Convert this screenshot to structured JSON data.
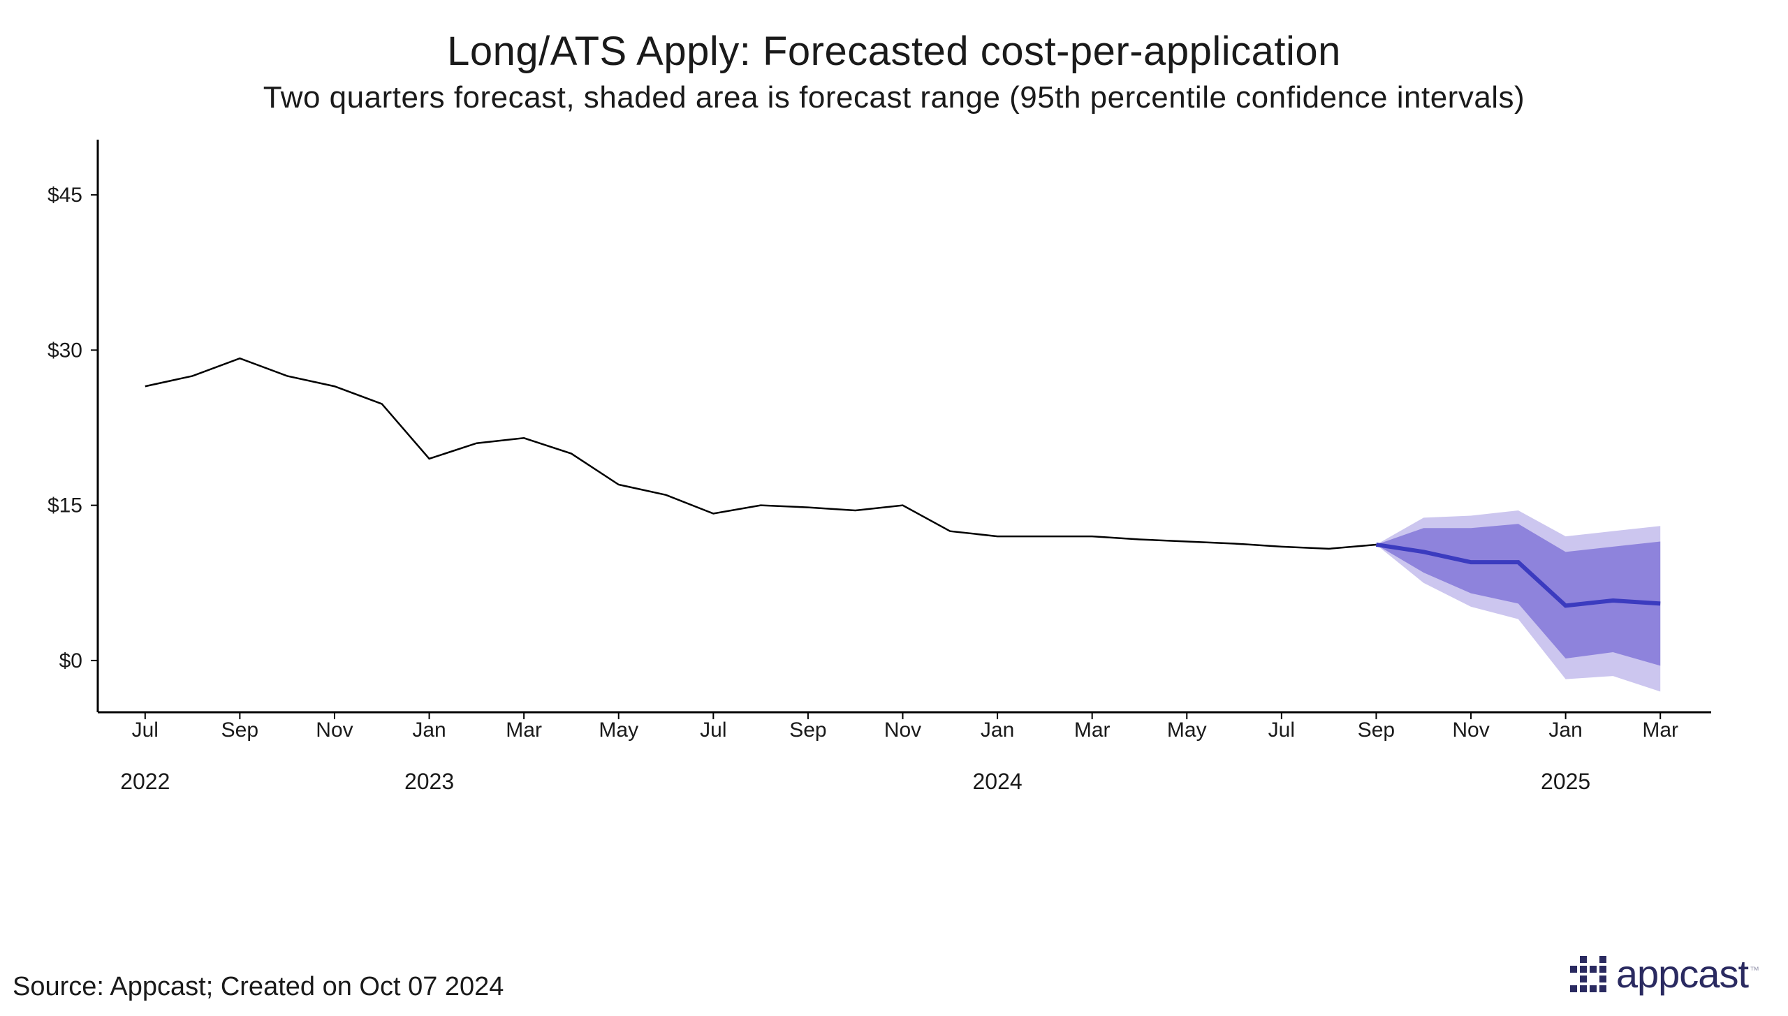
{
  "title": "Long/ATS Apply: Forecasted cost-per-application",
  "subtitle": "Two quarters forecast, shaded area is forecast range (95th percentile confidence intervals)",
  "source": "Source: Appcast; Created on Oct 07 2024",
  "logo_text": "appcast",
  "logo_color": "#2a2a60",
  "chart": {
    "type": "line+forecast",
    "background_color": "#ffffff",
    "axis_color": "#000000",
    "historical_line_color": "#000000",
    "historical_line_width": 2.5,
    "forecast_line_color": "#3b3bbf",
    "forecast_line_width": 6,
    "ci_inner_color": "#7a6cd6",
    "ci_inner_opacity": 0.75,
    "ci_outer_color": "#b7aee8",
    "ci_outer_opacity": 0.7,
    "y_axis": {
      "min": -5,
      "max": 50,
      "ticks": [
        0,
        15,
        30,
        45
      ],
      "tick_labels": [
        "$0",
        "$15",
        "$30",
        "$45"
      ],
      "tick_fontsize": 30
    },
    "x_axis": {
      "min": 0,
      "max": 34,
      "label_fontsize": 30,
      "year_fontsize": 32,
      "month_ticks": [
        {
          "i": 1,
          "label": "Jul"
        },
        {
          "i": 3,
          "label": "Sep"
        },
        {
          "i": 5,
          "label": "Nov"
        },
        {
          "i": 7,
          "label": "Jan"
        },
        {
          "i": 9,
          "label": "Mar"
        },
        {
          "i": 11,
          "label": "May"
        },
        {
          "i": 13,
          "label": "Jul"
        },
        {
          "i": 15,
          "label": "Sep"
        },
        {
          "i": 17,
          "label": "Nov"
        },
        {
          "i": 19,
          "label": "Jan"
        },
        {
          "i": 21,
          "label": "Mar"
        },
        {
          "i": 23,
          "label": "May"
        },
        {
          "i": 25,
          "label": "Jul"
        },
        {
          "i": 27,
          "label": "Sep"
        },
        {
          "i": 29,
          "label": "Nov"
        },
        {
          "i": 31,
          "label": "Jan"
        },
        {
          "i": 33,
          "label": "Mar"
        }
      ],
      "year_ticks": [
        {
          "i": 1,
          "label": "2022"
        },
        {
          "i": 7,
          "label": "2023"
        },
        {
          "i": 19,
          "label": "2024"
        },
        {
          "i": 31,
          "label": "2025"
        }
      ]
    },
    "historical": [
      {
        "i": 1,
        "y": 26.5
      },
      {
        "i": 2,
        "y": 27.5
      },
      {
        "i": 3,
        "y": 29.2
      },
      {
        "i": 4,
        "y": 27.5
      },
      {
        "i": 5,
        "y": 26.5
      },
      {
        "i": 6,
        "y": 24.8
      },
      {
        "i": 7,
        "y": 19.5
      },
      {
        "i": 8,
        "y": 21.0
      },
      {
        "i": 9,
        "y": 21.5
      },
      {
        "i": 10,
        "y": 20.0
      },
      {
        "i": 11,
        "y": 17.0
      },
      {
        "i": 12,
        "y": 16.0
      },
      {
        "i": 13,
        "y": 14.2
      },
      {
        "i": 14,
        "y": 15.0
      },
      {
        "i": 15,
        "y": 14.8
      },
      {
        "i": 16,
        "y": 14.5
      },
      {
        "i": 17,
        "y": 15.0
      },
      {
        "i": 18,
        "y": 12.5
      },
      {
        "i": 19,
        "y": 12.0
      },
      {
        "i": 20,
        "y": 12.0
      },
      {
        "i": 21,
        "y": 12.0
      },
      {
        "i": 22,
        "y": 11.7
      },
      {
        "i": 23,
        "y": 11.5
      },
      {
        "i": 24,
        "y": 11.3
      },
      {
        "i": 25,
        "y": 11.0
      },
      {
        "i": 26,
        "y": 10.8
      },
      {
        "i": 27,
        "y": 11.2
      }
    ],
    "forecast": [
      {
        "i": 27,
        "mean": 11.2,
        "lo1": 11.2,
        "hi1": 11.2,
        "lo2": 11.2,
        "hi2": 11.2
      },
      {
        "i": 28,
        "mean": 10.5,
        "lo1": 8.5,
        "hi1": 12.8,
        "lo2": 7.5,
        "hi2": 13.8
      },
      {
        "i": 29,
        "mean": 9.5,
        "lo1": 6.5,
        "hi1": 12.8,
        "lo2": 5.2,
        "hi2": 14.0
      },
      {
        "i": 30,
        "mean": 9.5,
        "lo1": 5.5,
        "hi1": 13.2,
        "lo2": 4.0,
        "hi2": 14.5
      },
      {
        "i": 31,
        "mean": 5.3,
        "lo1": 0.2,
        "hi1": 10.5,
        "lo2": -1.8,
        "hi2": 12.0
      },
      {
        "i": 32,
        "mean": 5.8,
        "lo1": 0.8,
        "hi1": 11.0,
        "lo2": -1.5,
        "hi2": 12.5
      },
      {
        "i": 33,
        "mean": 5.5,
        "lo1": -0.5,
        "hi1": 11.5,
        "lo2": -3.0,
        "hi2": 13.0
      }
    ]
  }
}
